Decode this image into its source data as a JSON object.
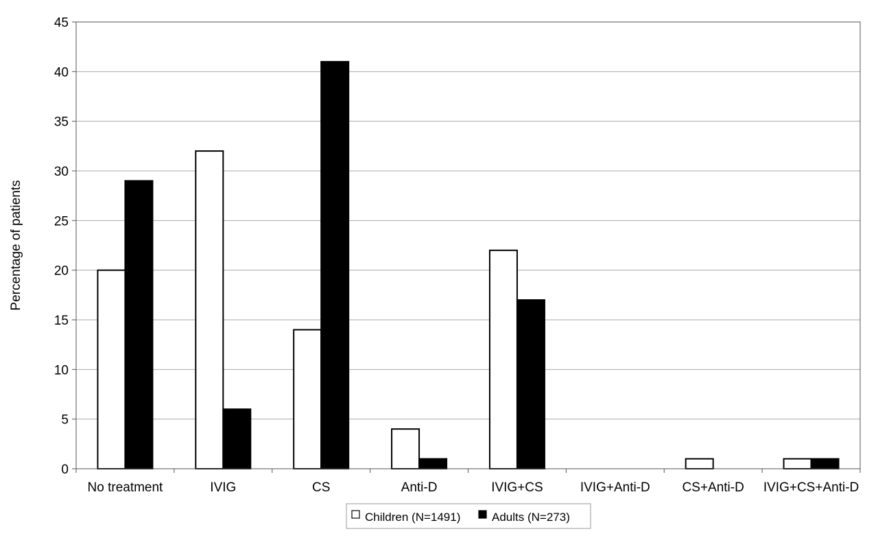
{
  "chart_data": {
    "type": "bar",
    "title": "",
    "xlabel": "",
    "ylabel": "Percentage of patients",
    "ylim": [
      0,
      45
    ],
    "yticks": [
      0,
      5,
      10,
      15,
      20,
      25,
      30,
      35,
      40,
      45
    ],
    "grid": true,
    "legend_position": "bottom",
    "categories": [
      "No treatment",
      "IVIG",
      "CS",
      "Anti-D",
      "IVIG+CS",
      "IVIG+Anti-D",
      "CS+Anti-D",
      "IVIG+CS+Anti-D"
    ],
    "series": [
      {
        "name": "Children (N=1491)",
        "values": [
          20,
          32,
          14,
          4,
          22,
          0,
          1,
          1
        ],
        "color": "#ffffff"
      },
      {
        "name": "Adults (N=273)",
        "values": [
          29,
          6,
          41,
          1,
          17,
          0,
          0,
          1
        ],
        "color": "#000000"
      }
    ]
  }
}
